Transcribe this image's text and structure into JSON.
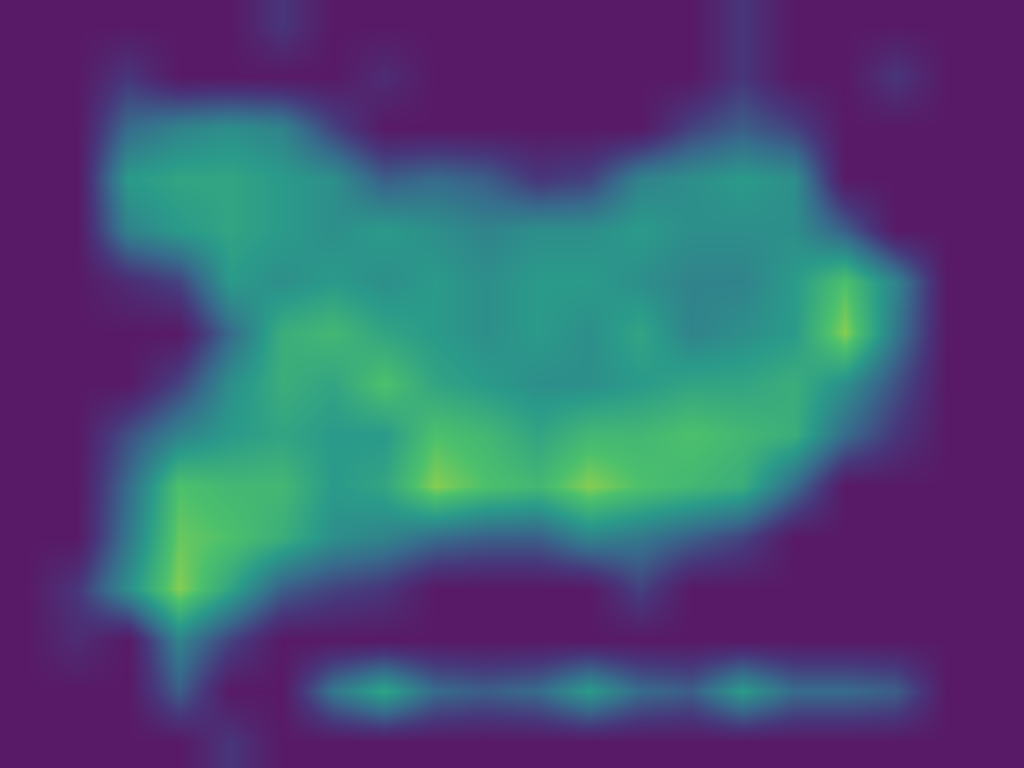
{
  "chart_data": {
    "type": "heatmap",
    "x": [
      0,
      1,
      2,
      3,
      4,
      5,
      6,
      7,
      8,
      9,
      10,
      11,
      12,
      13,
      14,
      15,
      16,
      17,
      18,
      19
    ],
    "y": [
      0,
      1,
      2,
      3,
      4,
      5,
      6,
      7,
      8,
      9,
      10,
      11,
      12,
      13,
      14
    ],
    "xlim": [
      -0.5,
      19.5
    ],
    "ylim": [
      14.5,
      -0.5
    ],
    "zlim": [
      0,
      1
    ],
    "tick_labels": false,
    "grid": false,
    "cells": [
      [
        0,
        0,
        0,
        0,
        0,
        0.15,
        0,
        0,
        0,
        0,
        0,
        0,
        0,
        0,
        0.15,
        0,
        0,
        0,
        0,
        0
      ],
      [
        0,
        0,
        0.15,
        0,
        0,
        0,
        0,
        0.1,
        0,
        0,
        0,
        0,
        0,
        0,
        0.15,
        0,
        0,
        0.15,
        0,
        0
      ],
      [
        0,
        0,
        0.35,
        0.45,
        0.5,
        0.45,
        0.2,
        0,
        0,
        0,
        0,
        0,
        0,
        0.2,
        0.3,
        0.2,
        0,
        0,
        0,
        0
      ],
      [
        0,
        0,
        0.55,
        0.6,
        0.6,
        0.55,
        0.5,
        0.3,
        0.35,
        0.3,
        0.15,
        0.2,
        0.45,
        0.5,
        0.55,
        0.5,
        0,
        0,
        0,
        0
      ],
      [
        0,
        0,
        0.45,
        0.55,
        0.6,
        0.55,
        0.5,
        0.55,
        0.5,
        0.45,
        0.5,
        0.5,
        0.55,
        0.5,
        0.5,
        0.5,
        0.3,
        0,
        0,
        0
      ],
      [
        0,
        0,
        0.1,
        0.2,
        0.55,
        0.5,
        0.55,
        0.5,
        0.55,
        0.5,
        0.55,
        0.55,
        0.5,
        0.45,
        0.45,
        0.55,
        0.75,
        0.45,
        0,
        0
      ],
      [
        0,
        0,
        0,
        0,
        0.35,
        0.65,
        0.7,
        0.6,
        0.55,
        0.5,
        0.55,
        0.5,
        0.6,
        0.45,
        0.5,
        0.55,
        0.85,
        0.4,
        0,
        0
      ],
      [
        0,
        0,
        0,
        0.2,
        0.5,
        0.65,
        0.6,
        0.75,
        0.6,
        0.55,
        0.5,
        0.5,
        0.55,
        0.6,
        0.6,
        0.65,
        0.5,
        0.25,
        0,
        0
      ],
      [
        0,
        0,
        0.25,
        0.45,
        0.55,
        0.6,
        0.55,
        0.55,
        0.75,
        0.7,
        0.6,
        0.7,
        0.7,
        0.75,
        0.7,
        0.65,
        0.35,
        0.15,
        0,
        0
      ],
      [
        0,
        0,
        0.35,
        0.75,
        0.7,
        0.7,
        0.55,
        0.6,
        0.85,
        0.75,
        0.7,
        0.85,
        0.75,
        0.7,
        0.65,
        0.35,
        0,
        0,
        0,
        0
      ],
      [
        0,
        0,
        0.4,
        0.8,
        0.75,
        0.65,
        0.5,
        0.45,
        0.35,
        0.3,
        0.3,
        0.45,
        0.4,
        0.3,
        0.2,
        0,
        0,
        0,
        0,
        0
      ],
      [
        0,
        0.15,
        0.5,
        0.85,
        0.6,
        0.3,
        0.2,
        0.15,
        0,
        0,
        0,
        0,
        0.2,
        0,
        0,
        0,
        0,
        0,
        0,
        0
      ],
      [
        0,
        0.1,
        0,
        0.45,
        0.2,
        0,
        0,
        0,
        0,
        0,
        0,
        0,
        0,
        0,
        0,
        0,
        0,
        0,
        0,
        0
      ],
      [
        0,
        0,
        0,
        0.3,
        0,
        0,
        0.4,
        0.6,
        0.35,
        0.3,
        0.35,
        0.55,
        0.35,
        0.3,
        0.55,
        0.35,
        0.35,
        0.3,
        0,
        0
      ],
      [
        0,
        0,
        0,
        0,
        0.15,
        0,
        0,
        0,
        0,
        0,
        0,
        0,
        0,
        0,
        0,
        0,
        0,
        0,
        0,
        0
      ]
    ]
  }
}
